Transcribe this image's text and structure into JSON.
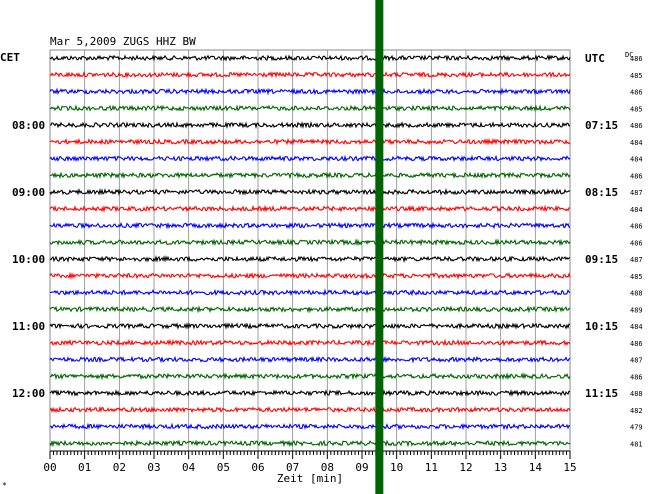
{
  "chart_data": {
    "type": "line",
    "title": "Mar 5,2009   ZUGS HHZ BW",
    "left_header": "CET",
    "right_header": "UTC",
    "dc_header": "DC",
    "xlabel": "Zeit [min]",
    "xlim": [
      0,
      15
    ],
    "x_ticks": [
      "00",
      "01",
      "02",
      "03",
      "04",
      "05",
      "06",
      "07",
      "08",
      "09",
      "10",
      "11",
      "12",
      "13",
      "14",
      "15"
    ],
    "trace_count": 24,
    "trace_colors": [
      "#000000",
      "#ff0000",
      "#0000ff",
      "#006400"
    ],
    "left_time_labels": [
      {
        "trace": 4,
        "label": "08:00"
      },
      {
        "trace": 8,
        "label": "09:00"
      },
      {
        "trace": 12,
        "label": "10:00"
      },
      {
        "trace": 16,
        "label": "11:00"
      },
      {
        "trace": 20,
        "label": "12:00"
      }
    ],
    "right_time_labels": [
      {
        "trace": 0,
        "label": "UTC"
      },
      {
        "trace": 4,
        "label": "07:15"
      },
      {
        "trace": 8,
        "label": "08:15"
      },
      {
        "trace": 12,
        "label": "09:15"
      },
      {
        "trace": 16,
        "label": "10:15"
      },
      {
        "trace": 20,
        "label": "11:15"
      }
    ],
    "dc_values": [
      "486",
      "485",
      "486",
      "485",
      "486",
      "484",
      "484",
      "486",
      "487",
      "484",
      "486",
      "486",
      "487",
      "485",
      "488",
      "489",
      "484",
      "486",
      "487",
      "486",
      "488",
      "482",
      "479",
      "481"
    ],
    "event_marker": {
      "x": 9.5,
      "color": "#006400"
    },
    "corner_mark": "*"
  }
}
